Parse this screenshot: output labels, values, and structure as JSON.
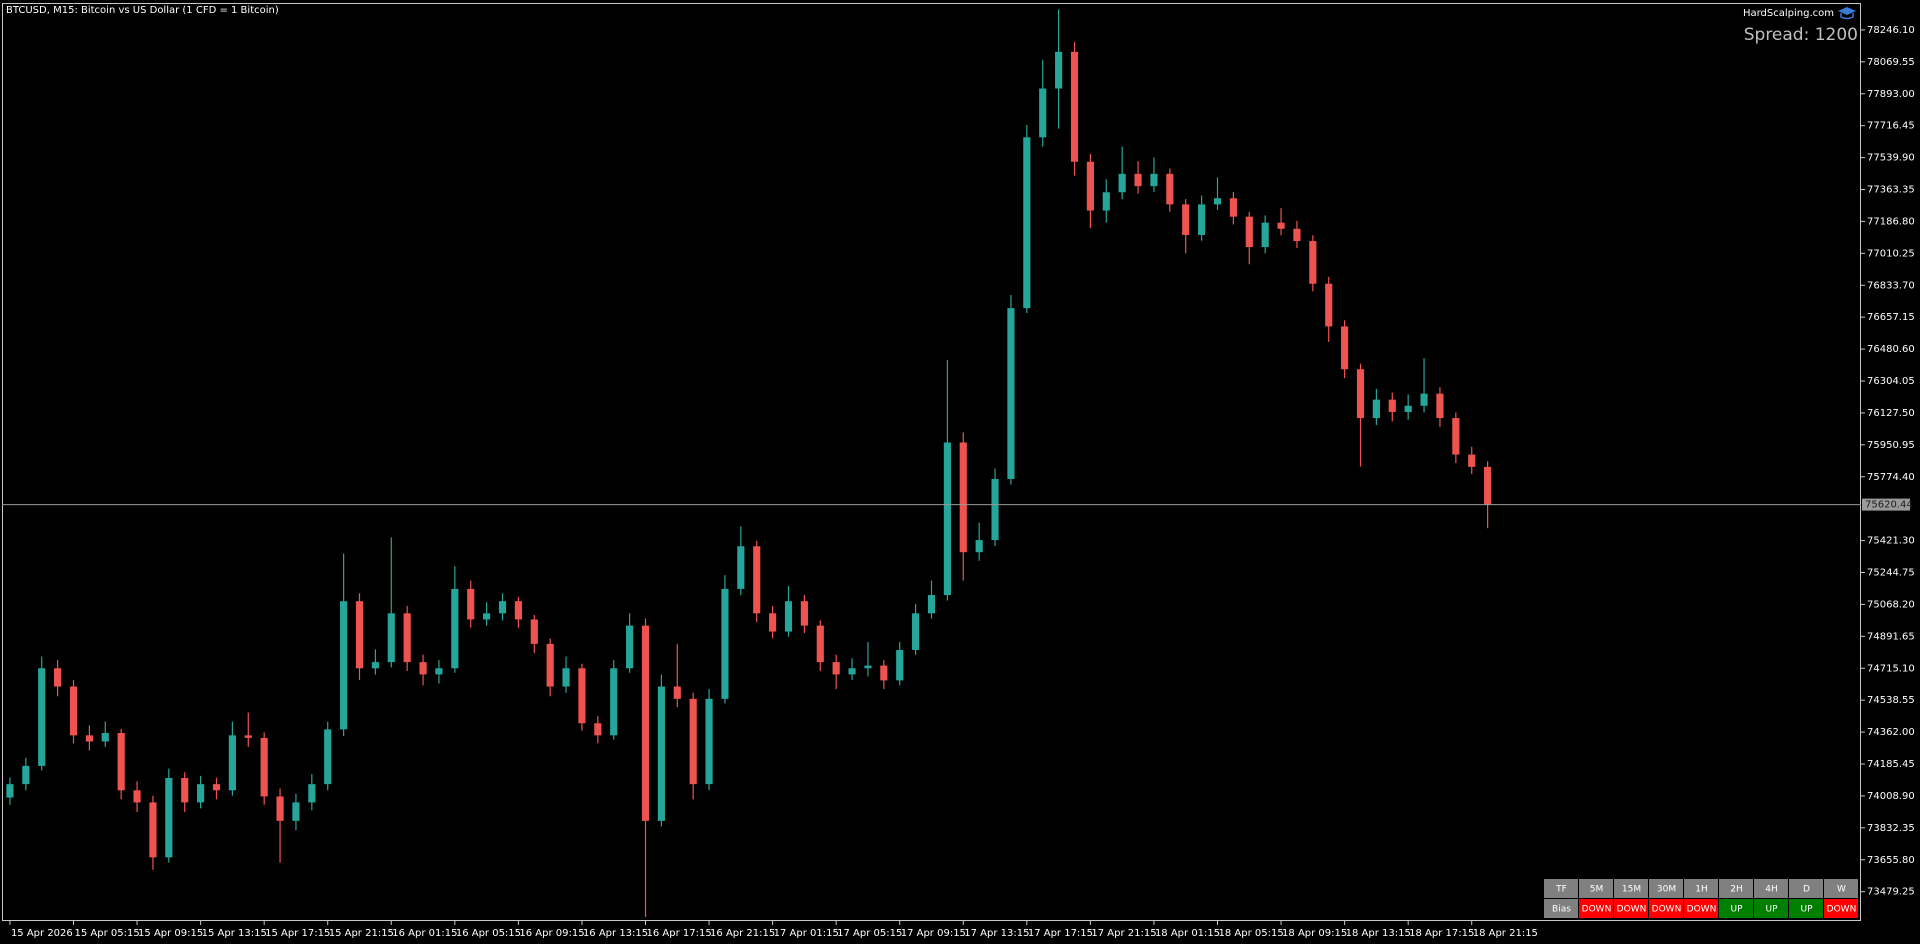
{
  "chart_data": {
    "type": "candlestick",
    "title": "BTCUSD, M15:  Bitcoin vs US Dollar (1 CFD = 1 Bitcoin)",
    "up_color": "#26a69a",
    "down_color": "#ef5350",
    "grid": false,
    "ylim": [
      73317,
      78395
    ],
    "yticks": [
      {
        "value": 78246.1,
        "label": "78246.10"
      },
      {
        "value": 78069.55,
        "label": "78069.55"
      },
      {
        "value": 77893.0,
        "label": "77893.00"
      },
      {
        "value": 77716.45,
        "label": "77716.45"
      },
      {
        "value": 77539.9,
        "label": "77539.90"
      },
      {
        "value": 77363.35,
        "label": "77363.35"
      },
      {
        "value": 77186.8,
        "label": "77186.80"
      },
      {
        "value": 77010.25,
        "label": "77010.25"
      },
      {
        "value": 76833.7,
        "label": "76833.70"
      },
      {
        "value": 76657.15,
        "label": "76657.15"
      },
      {
        "value": 76480.6,
        "label": "76480.60"
      },
      {
        "value": 76304.05,
        "label": "76304.05"
      },
      {
        "value": 76127.5,
        "label": "76127.50"
      },
      {
        "value": 75950.95,
        "label": "75950.95"
      },
      {
        "value": 75774.4,
        "label": "75774.40"
      },
      {
        "value": 75421.3,
        "label": "75421.30"
      },
      {
        "value": 75244.75,
        "label": "75244.75"
      },
      {
        "value": 75068.2,
        "label": "75068.20"
      },
      {
        "value": 74891.65,
        "label": "74891.65"
      },
      {
        "value": 74715.1,
        "label": "74715.10"
      },
      {
        "value": 74538.55,
        "label": "74538.55"
      },
      {
        "value": 74362.0,
        "label": "74362.00"
      },
      {
        "value": 74185.45,
        "label": "74185.45"
      },
      {
        "value": 74008.9,
        "label": "74008.90"
      },
      {
        "value": 73832.35,
        "label": "73832.35"
      },
      {
        "value": 73655.8,
        "label": "73655.80"
      },
      {
        "value": 73479.25,
        "label": "73479.25"
      }
    ],
    "xticks": [
      {
        "value": 0,
        "label": "15 Apr 2026"
      },
      {
        "value": 4,
        "label": "15 Apr 05:15"
      },
      {
        "value": 8,
        "label": "15 Apr 09:15"
      },
      {
        "value": 12,
        "label": "15 Apr 13:15"
      },
      {
        "value": 16,
        "label": "15 Apr 17:15"
      },
      {
        "value": 20,
        "label": "15 Apr 21:15"
      },
      {
        "value": 24,
        "label": "16 Apr 01:15"
      },
      {
        "value": 28,
        "label": "16 Apr 05:15"
      },
      {
        "value": 32,
        "label": "16 Apr 09:15"
      },
      {
        "value": 36,
        "label": "16 Apr 13:15"
      },
      {
        "value": 40,
        "label": "16 Apr 17:15"
      },
      {
        "value": 44,
        "label": "16 Apr 21:15"
      },
      {
        "value": 48,
        "label": "17 Apr 01:15"
      },
      {
        "value": 52,
        "label": "17 Apr 05:15"
      },
      {
        "value": 56,
        "label": "17 Apr 09:15"
      },
      {
        "value": 60,
        "label": "17 Apr 13:15"
      },
      {
        "value": 64,
        "label": "17 Apr 17:15"
      },
      {
        "value": 68,
        "label": "17 Apr 21:15"
      },
      {
        "value": 72,
        "label": "18 Apr 01:15"
      },
      {
        "value": 76,
        "label": "18 Apr 05:15"
      },
      {
        "value": 80,
        "label": "18 Apr 09:15"
      },
      {
        "value": 84,
        "label": "18 Apr 13:15"
      },
      {
        "value": 88,
        "label": "18 Apr 17:15"
      },
      {
        "value": 92,
        "label": "18 Apr 21:15"
      }
    ],
    "xlim": [
      -0.5,
      116.5
    ],
    "current_price": 75620.44,
    "current_price_color": "#9a9a9a",
    "candles": [
      [
        74000,
        74110,
        73960,
        74074
      ],
      [
        74074,
        74220,
        74040,
        74175
      ],
      [
        74175,
        74780,
        74150,
        74715
      ],
      [
        74715,
        74760,
        74560,
        74614
      ],
      [
        74614,
        74650,
        74300,
        74344
      ],
      [
        74344,
        74400,
        74260,
        74310
      ],
      [
        74310,
        74420,
        74280,
        74357
      ],
      [
        74357,
        74380,
        73990,
        74040
      ],
      [
        74040,
        74090,
        73920,
        73973
      ],
      [
        73973,
        74010,
        73600,
        73669
      ],
      [
        73669,
        74160,
        73640,
        74108
      ],
      [
        74108,
        74140,
        73920,
        73973
      ],
      [
        73973,
        74120,
        73940,
        74074
      ],
      [
        74074,
        74110,
        73990,
        74040
      ],
      [
        74040,
        74420,
        74010,
        74344
      ],
      [
        74344,
        74470,
        74280,
        74330
      ],
      [
        74330,
        74360,
        73960,
        74006
      ],
      [
        74006,
        74050,
        73640,
        73871
      ],
      [
        73871,
        74020,
        73820,
        73973
      ],
      [
        73973,
        74130,
        73930,
        74074
      ],
      [
        74074,
        74420,
        74040,
        74377
      ],
      [
        74377,
        75350,
        74340,
        75086
      ],
      [
        75086,
        75130,
        74650,
        74715
      ],
      [
        74715,
        74820,
        74680,
        74749
      ],
      [
        74749,
        75440,
        74720,
        75019
      ],
      [
        75019,
        75060,
        74700,
        74749
      ],
      [
        74749,
        74790,
        74620,
        74681
      ],
      [
        74681,
        74760,
        74630,
        74715
      ],
      [
        74715,
        75280,
        74690,
        75154
      ],
      [
        75154,
        75200,
        74940,
        74985
      ],
      [
        74985,
        75080,
        74950,
        75019
      ],
      [
        75019,
        75130,
        74980,
        75086
      ],
      [
        75086,
        75110,
        74940,
        74985
      ],
      [
        74985,
        75010,
        74800,
        74850
      ],
      [
        74850,
        74880,
        74560,
        74614
      ],
      [
        74614,
        74780,
        74580,
        74715
      ],
      [
        74715,
        74740,
        74370,
        74411
      ],
      [
        74411,
        74450,
        74300,
        74344
      ],
      [
        74344,
        74760,
        74320,
        74715
      ],
      [
        74715,
        75020,
        74690,
        74951
      ],
      [
        74951,
        74990,
        73340,
        73871
      ],
      [
        73871,
        74680,
        73840,
        74614
      ],
      [
        74614,
        74850,
        74500,
        74546
      ],
      [
        74546,
        74580,
        73990,
        74074
      ],
      [
        74074,
        74600,
        74040,
        74546
      ],
      [
        74546,
        75230,
        74520,
        75154
      ],
      [
        75154,
        75500,
        75120,
        75390
      ],
      [
        75390,
        75420,
        74970,
        75019
      ],
      [
        75019,
        75060,
        74880,
        74918
      ],
      [
        74918,
        75170,
        74890,
        75086
      ],
      [
        75086,
        75120,
        74910,
        74951
      ],
      [
        74951,
        74980,
        74700,
        74749
      ],
      [
        74749,
        74790,
        74600,
        74681
      ],
      [
        74681,
        74770,
        74650,
        74715
      ],
      [
        74715,
        74860,
        74670,
        74730
      ],
      [
        74730,
        74760,
        74600,
        74648
      ],
      [
        74648,
        74860,
        74620,
        74816
      ],
      [
        74816,
        75070,
        74790,
        75019
      ],
      [
        75019,
        75200,
        74990,
        75120
      ],
      [
        75120,
        76420,
        75090,
        75964
      ],
      [
        75964,
        76020,
        75200,
        75357
      ],
      [
        75357,
        75520,
        75310,
        75424
      ],
      [
        75424,
        75820,
        75390,
        75762
      ],
      [
        75762,
        76780,
        75730,
        76707
      ],
      [
        76707,
        77720,
        76680,
        77652
      ],
      [
        77652,
        78080,
        77600,
        77922
      ],
      [
        77922,
        78360,
        77700,
        78125
      ],
      [
        78125,
        78180,
        77440,
        77517
      ],
      [
        77517,
        77560,
        77150,
        77247
      ],
      [
        77247,
        77420,
        77180,
        77348
      ],
      [
        77348,
        77600,
        77310,
        77450
      ],
      [
        77450,
        77520,
        77340,
        77382
      ],
      [
        77382,
        77540,
        77350,
        77450
      ],
      [
        77450,
        77480,
        77240,
        77281
      ],
      [
        77281,
        77310,
        77010,
        77112
      ],
      [
        77112,
        77330,
        77080,
        77281
      ],
      [
        77281,
        77430,
        77250,
        77315
      ],
      [
        77315,
        77350,
        77170,
        77213
      ],
      [
        77213,
        77240,
        76950,
        77045
      ],
      [
        77045,
        77220,
        77010,
        77180
      ],
      [
        77180,
        77260,
        77110,
        77146
      ],
      [
        77146,
        77190,
        77040,
        77078
      ],
      [
        77078,
        77110,
        76800,
        76842
      ],
      [
        76842,
        76880,
        76520,
        76606
      ],
      [
        76606,
        76640,
        76320,
        76369
      ],
      [
        76369,
        76400,
        75830,
        76099
      ],
      [
        76099,
        76260,
        76060,
        76201
      ],
      [
        76201,
        76240,
        76080,
        76133
      ],
      [
        76133,
        76230,
        76090,
        76167
      ],
      [
        76167,
        76430,
        76130,
        76234
      ],
      [
        76234,
        76270,
        76050,
        76099
      ],
      [
        76099,
        76130,
        75850,
        75897
      ],
      [
        75897,
        75940,
        75790,
        75829
      ],
      [
        75829,
        75860,
        75490,
        75620.44
      ]
    ]
  },
  "watermark": "HardScalping.com",
  "spread": "Spread: 1200",
  "bias_table": {
    "header": [
      "TF",
      "5M",
      "15M",
      "30M",
      "1H",
      "2H",
      "4H",
      "D",
      "W"
    ],
    "rows": [
      [
        "Bias",
        "DOWN",
        "DOWN",
        "DOWN",
        "DOWN",
        "UP",
        "UP",
        "UP",
        "DOWN"
      ]
    ],
    "header_color": "#808080",
    "row_colors": [
      [
        "#808080",
        "#ff0000",
        "#ff0000",
        "#ff0000",
        "#ff0000",
        "#008000",
        "#008000",
        "#008000",
        "#ff0000"
      ]
    ]
  }
}
